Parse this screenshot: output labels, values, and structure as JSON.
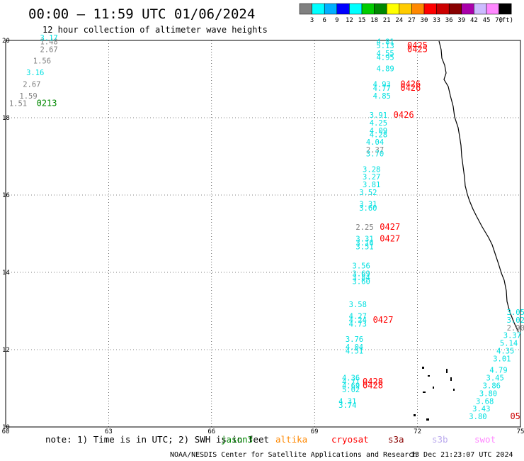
{
  "header": {
    "title": "00:00 – 11:59 UTC 01/06/2024",
    "subtitle": "12 hour collection of altimeter wave heights"
  },
  "colorbar": {
    "labels": [
      "3",
      "6",
      "9",
      "12",
      "15",
      "18",
      "21",
      "24",
      "27",
      "30",
      "33",
      "36",
      "39",
      "42",
      "45",
      "70",
      "(ft)"
    ],
    "colors": [
      "#808080",
      "#00ffff",
      "#00b0ff",
      "#0000ff",
      "#00ffff",
      "#00cc00",
      "#008800",
      "#ffff00",
      "#ffcc00",
      "#ff8800",
      "#ff0000",
      "#cc0000",
      "#880000",
      "#aa00aa",
      "#ccbbff",
      "#ff88ff",
      "#000000"
    ]
  },
  "footer": {
    "note": "note: 1) Time is in UTC; 2) SWH is in feet",
    "satellites": [
      {
        "name": "jason3",
        "color": "#008800"
      },
      {
        "name": "altika",
        "color": "#ff8800"
      },
      {
        "name": "cryosat",
        "color": "#ff0000"
      },
      {
        "name": "s3a",
        "color": "#880000"
      },
      {
        "name": "s3b",
        "color": "#bbaaee"
      },
      {
        "name": "swot",
        "color": "#ff88ff"
      }
    ],
    "credit": "NOAA/NESDIS Center for Satellite Applications and Research",
    "timestamp": "13 Dec 21:23:07 UTC 2024"
  },
  "chart_data": {
    "type": "scatter",
    "title": "00:00 – 11:59 UTC 01/06/2024",
    "subtitle": "12 hour collection of altimeter wave heights",
    "xlabel": "",
    "ylabel": "",
    "xlim": [
      60,
      75
    ],
    "ylim": [
      10,
      20
    ],
    "x_ticks": [
      "60",
      "63",
      "66",
      "69",
      "72",
      "75"
    ],
    "y_ticks": [
      "10",
      "12",
      "14",
      "16",
      "18",
      "20"
    ],
    "grid": true,
    "series": [
      {
        "name": "jason3",
        "color": "#008800",
        "points": [
          {
            "x": 60.1,
            "y": 18.3,
            "v": "1.51"
          },
          {
            "x": 60.4,
            "y": 18.5,
            "v": "1.59"
          },
          {
            "x": 60.5,
            "y": 18.8,
            "v": "2.67"
          },
          {
            "x": 60.6,
            "y": 19.1,
            "v": "3.16"
          },
          {
            "x": 60.8,
            "y": 19.4,
            "v": "1.56"
          },
          {
            "x": 61.0,
            "y": 19.7,
            "v": "2.67"
          },
          {
            "x": 61.0,
            "y": 19.9,
            "v": "1.48"
          },
          {
            "x": 61.0,
            "y": 20.0,
            "v": "3.17"
          }
        ]
      },
      {
        "name": "cryosat",
        "color": "#ff0000",
        "points": [
          {
            "x": 70.8,
            "y": 19.9,
            "v": "4.81"
          },
          {
            "x": 70.8,
            "y": 19.8,
            "v": "5.13"
          },
          {
            "x": 70.8,
            "y": 19.6,
            "v": "4.55"
          },
          {
            "x": 70.8,
            "y": 19.5,
            "v": "4.95"
          },
          {
            "x": 70.8,
            "y": 19.2,
            "v": "4.89"
          },
          {
            "x": 70.7,
            "y": 18.8,
            "v": "4.93"
          },
          {
            "x": 70.7,
            "y": 18.7,
            "v": "4.77"
          },
          {
            "x": 70.7,
            "y": 18.5,
            "v": "4.85"
          },
          {
            "x": 70.6,
            "y": 18.0,
            "v": "3.91"
          },
          {
            "x": 70.6,
            "y": 17.8,
            "v": "4.25"
          },
          {
            "x": 70.6,
            "y": 17.6,
            "v": "4.09"
          },
          {
            "x": 70.6,
            "y": 17.5,
            "v": "4.28"
          },
          {
            "x": 70.5,
            "y": 17.3,
            "v": "4.04"
          },
          {
            "x": 70.5,
            "y": 17.1,
            "v": "2.37"
          },
          {
            "x": 70.5,
            "y": 17.0,
            "v": "3.70"
          },
          {
            "x": 70.4,
            "y": 16.6,
            "v": "3.28"
          },
          {
            "x": 70.4,
            "y": 16.4,
            "v": "3.27"
          },
          {
            "x": 70.4,
            "y": 16.2,
            "v": "3.81"
          },
          {
            "x": 70.3,
            "y": 16.0,
            "v": "3.52"
          },
          {
            "x": 70.3,
            "y": 15.7,
            "v": "3.31"
          },
          {
            "x": 70.3,
            "y": 15.6,
            "v": "3.60"
          },
          {
            "x": 70.2,
            "y": 15.1,
            "v": "2.25"
          },
          {
            "x": 70.2,
            "y": 14.8,
            "v": "3.31"
          },
          {
            "x": 70.2,
            "y": 14.7,
            "v": "3.16"
          },
          {
            "x": 70.2,
            "y": 14.6,
            "v": "3.51"
          },
          {
            "x": 70.1,
            "y": 14.1,
            "v": "3.56"
          },
          {
            "x": 70.1,
            "y": 13.9,
            "v": "3.69"
          },
          {
            "x": 70.1,
            "y": 13.8,
            "v": "3.84"
          },
          {
            "x": 70.1,
            "y": 13.7,
            "v": "3.60"
          },
          {
            "x": 70.0,
            "y": 13.1,
            "v": "3.58"
          },
          {
            "x": 70.0,
            "y": 12.8,
            "v": "4.27"
          },
          {
            "x": 70.0,
            "y": 12.7,
            "v": "4.24"
          },
          {
            "x": 70.0,
            "y": 12.6,
            "v": "4.73"
          },
          {
            "x": 69.9,
            "y": 12.2,
            "v": "3.76"
          },
          {
            "x": 69.9,
            "y": 12.0,
            "v": "4.04"
          },
          {
            "x": 69.9,
            "y": 11.9,
            "v": "4.51"
          },
          {
            "x": 69.8,
            "y": 11.2,
            "v": "4.36"
          },
          {
            "x": 69.8,
            "y": 11.1,
            "v": "4.71"
          },
          {
            "x": 69.8,
            "y": 11.0,
            "v": "4.69"
          },
          {
            "x": 69.8,
            "y": 10.9,
            "v": "5.02"
          },
          {
            "x": 69.7,
            "y": 10.6,
            "v": "4.31"
          },
          {
            "x": 69.7,
            "y": 10.5,
            "v": "3.74"
          }
        ]
      },
      {
        "name": "s3a",
        "color": "#880000",
        "points": [
          {
            "x": 74.6,
            "y": 12.9,
            "v": "3.05"
          },
          {
            "x": 74.6,
            "y": 12.7,
            "v": "3.02"
          },
          {
            "x": 74.6,
            "y": 12.5,
            "v": "2.90"
          },
          {
            "x": 74.5,
            "y": 12.3,
            "v": "3.37"
          },
          {
            "x": 74.4,
            "y": 12.1,
            "v": "5.14"
          },
          {
            "x": 74.3,
            "y": 11.9,
            "v": "4.35"
          },
          {
            "x": 74.2,
            "y": 11.7,
            "v": "3.01"
          },
          {
            "x": 74.1,
            "y": 11.4,
            "v": "4.79"
          },
          {
            "x": 74.0,
            "y": 11.2,
            "v": "3.45"
          },
          {
            "x": 73.9,
            "y": 11.0,
            "v": "3.86"
          },
          {
            "x": 73.8,
            "y": 10.8,
            "v": "3.80"
          },
          {
            "x": 73.7,
            "y": 10.6,
            "v": "3.68"
          },
          {
            "x": 73.6,
            "y": 10.4,
            "v": "3.43"
          },
          {
            "x": 73.5,
            "y": 10.2,
            "v": "3.80"
          }
        ]
      }
    ],
    "time_labels": [
      {
        "x": 60.9,
        "y": 18.3,
        "t": "0213",
        "color": "#008800"
      },
      {
        "x": 71.7,
        "y": 19.8,
        "t": "0425",
        "color": "#ff0000"
      },
      {
        "x": 71.7,
        "y": 19.7,
        "t": "0425",
        "color": "#ff0000"
      },
      {
        "x": 71.5,
        "y": 18.8,
        "t": "0426",
        "color": "#ff0000"
      },
      {
        "x": 71.5,
        "y": 18.7,
        "t": "0426",
        "color": "#ff0000"
      },
      {
        "x": 71.3,
        "y": 18.0,
        "t": "0426",
        "color": "#ff0000"
      },
      {
        "x": 70.9,
        "y": 15.1,
        "t": "0427",
        "color": "#ff0000"
      },
      {
        "x": 70.9,
        "y": 14.8,
        "t": "0427",
        "color": "#ff0000"
      },
      {
        "x": 70.7,
        "y": 12.7,
        "t": "0427",
        "color": "#ff0000"
      },
      {
        "x": 70.4,
        "y": 11.1,
        "t": "0428",
        "color": "#ff0000"
      },
      {
        "x": 70.4,
        "y": 11.0,
        "t": "0428",
        "color": "#ff0000"
      },
      {
        "x": 74.7,
        "y": 10.2,
        "t": "05",
        "color": "#cc0000"
      }
    ]
  }
}
